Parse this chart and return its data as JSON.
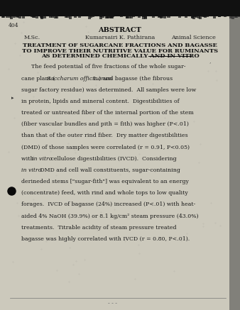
{
  "bg_color": "#ccc9bc",
  "page_color": "#e2ddd0",
  "top_bar_color": "#111111",
  "page_number": "404",
  "header": "ABSTRACT",
  "meta_left": "M.Sc.",
  "meta_center": "Kumarsairi K. Pathirana",
  "meta_right": "Animal Science",
  "title_line1": "TREATMENT OF SUGARCANE FRACTIONS AND BAGASSE",
  "title_line2": "TO IMPROVE THEIR NUTRITIVE VALUE FOR RUMINANTS",
  "title_line3_pre": "AS DETERMINED CHEMICALLY AND ",
  "title_line3_ul": "IN VITRO",
  "body_lines": [
    {
      "text": "The feed potential of five fractions of the whole sugar-",
      "indent": true,
      "parts": null
    },
    {
      "text": "cane plant (Saccharum officinarum L.) and bagasse (the fibrous",
      "indent": false,
      "parts": [
        {
          "t": "cane plant (",
          "i": false
        },
        {
          "t": "Saccharum officinarum",
          "i": true
        },
        {
          "t": " L.) and bagasse (the fibrous",
          "i": false
        }
      ]
    },
    {
      "text": "sugar factory residue) was determined.  All samples were low",
      "indent": false,
      "parts": null
    },
    {
      "text": "in protein, lipids and mineral content.  Digestibilities of",
      "indent": false,
      "parts": null
    },
    {
      "text": "treated or untreated fiber of the internal portion of the stem",
      "indent": false,
      "parts": null
    },
    {
      "text": "(fiber vascular bundles and pith = fith) was higher (P<.01)",
      "indent": false,
      "parts": null
    },
    {
      "text": "than that of the outer rind fiber.  Dry matter digestibilities",
      "indent": false,
      "parts": null
    },
    {
      "text": "(DMD) of those samples were correlated (r = 0.91, P<0.05)",
      "indent": false,
      "parts": null
    },
    {
      "text": "with in vitro cellulose digestibilities (IVCD).  Considering",
      "indent": false,
      "parts": [
        {
          "t": "with ",
          "i": false
        },
        {
          "t": "in vitro",
          "i": true
        },
        {
          "t": " cellulose digestibilities (IVCD).  Considering",
          "i": false
        }
      ]
    },
    {
      "text": "in vitro DMD and cell wall constituents, sugar-containing",
      "indent": false,
      "parts": [
        {
          "t": "in vitro",
          "i": true
        },
        {
          "t": " DMD and cell wall constituents, sugar-containing",
          "i": false
        }
      ]
    },
    {
      "text": "derineded stems [\"sugar-fith\"] was equivalent to an energy",
      "indent": false,
      "parts": null
    },
    {
      "text": "(concentrate) feed, with rind and whole tops to low quality",
      "indent": false,
      "parts": null
    },
    {
      "text": "forages.  IVCD of bagasse (24%) increased (P<.01) with heat-",
      "indent": false,
      "parts": null
    },
    {
      "text": "aided 4% NaOH (39.9%) or 8.1 kg/cm² steam pressure (43.0%)",
      "indent": false,
      "parts": null
    },
    {
      "text": "treatments.  Titrable acidity of steam pressure treated",
      "indent": false,
      "parts": null
    },
    {
      "text": "bagasse was highly correlated with IVCD (r = 0.80, P<.01).",
      "indent": false,
      "parts": null
    }
  ]
}
